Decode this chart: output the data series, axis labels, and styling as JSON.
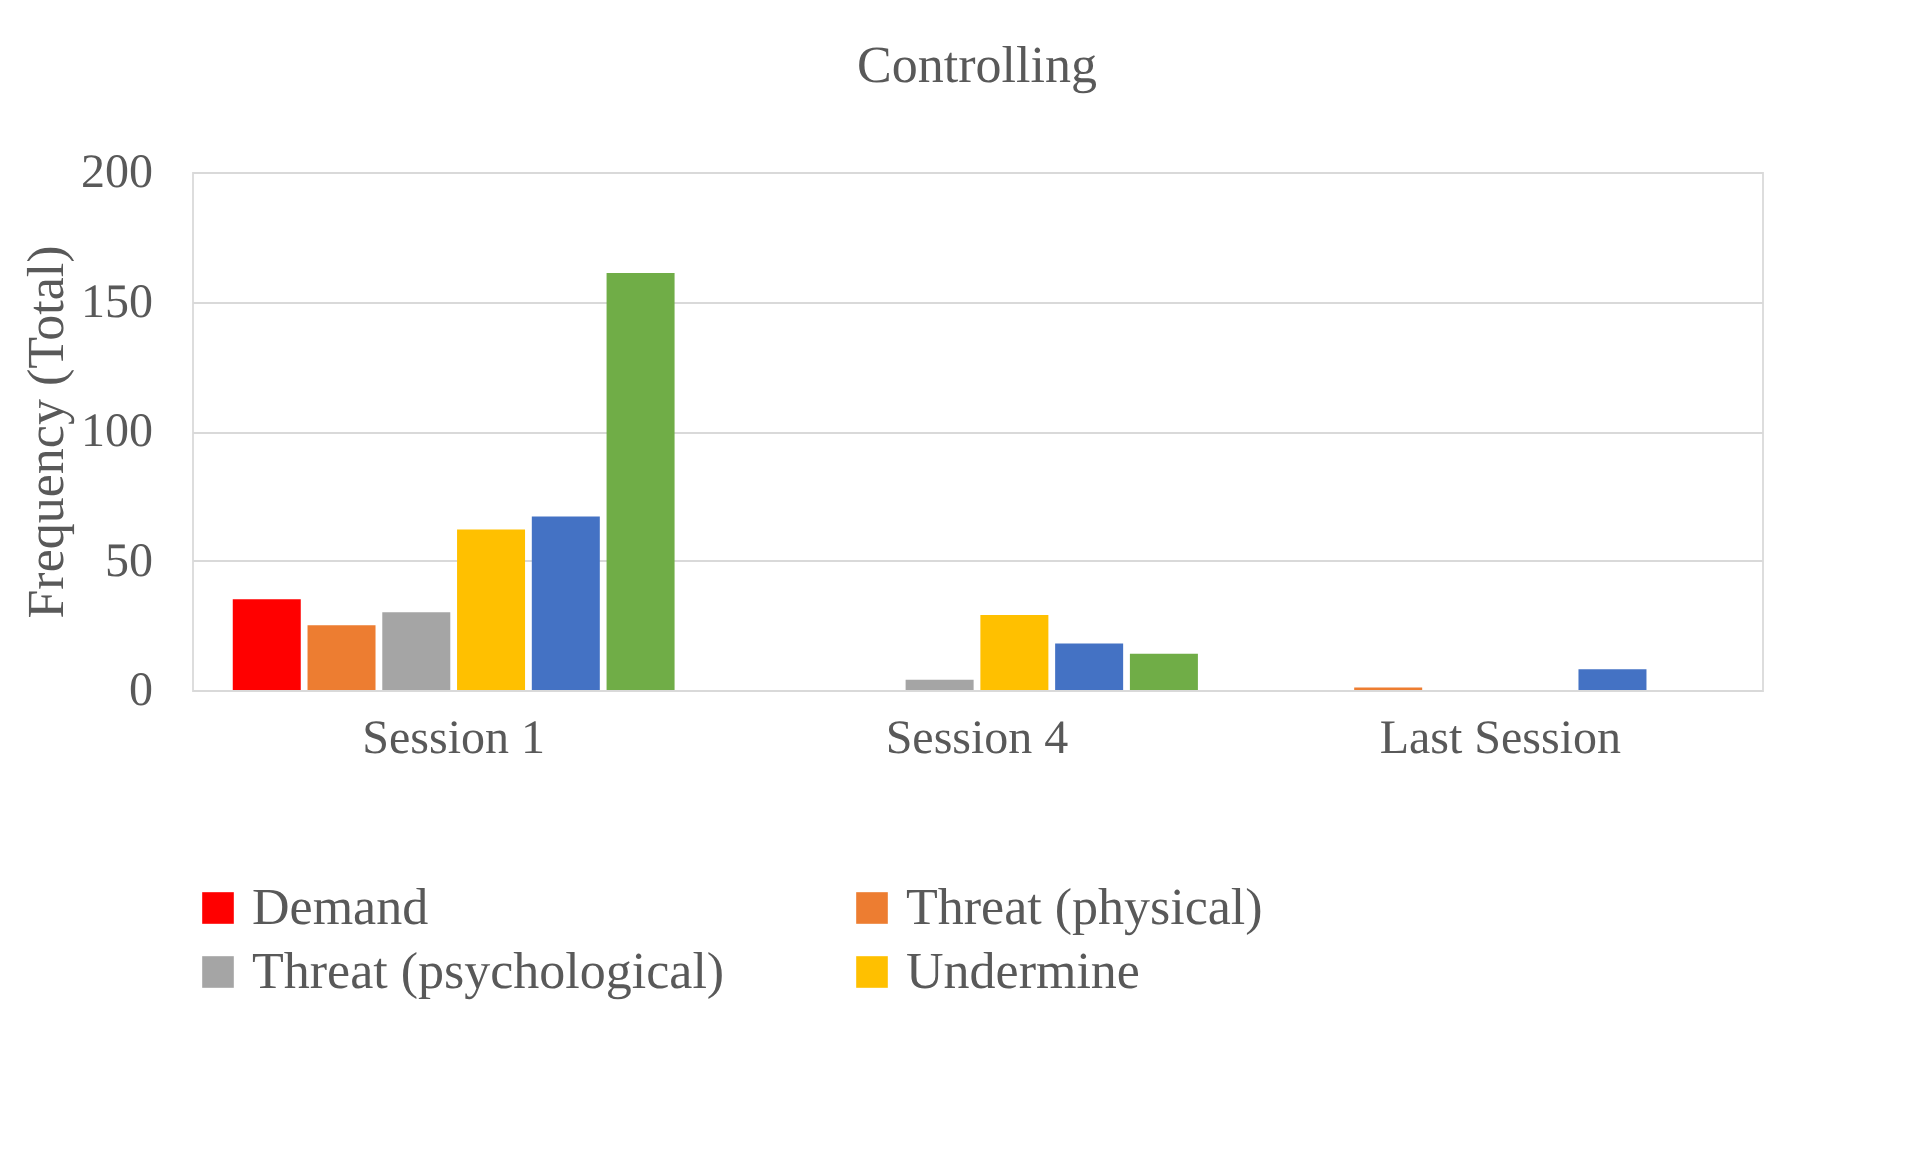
{
  "chart_data": {
    "type": "bar",
    "title": "Controlling",
    "ylabel": "Frequency (Total)",
    "categories": [
      "Session 1",
      "Session 4",
      "Last Session"
    ],
    "series": [
      {
        "name": "Demand",
        "color": "#ff0000",
        "values": [
          35,
          0,
          0
        ]
      },
      {
        "name": "Threat (physical)",
        "color": "#ed7d31",
        "values": [
          25,
          0,
          1
        ]
      },
      {
        "name": "Threat (psychological)",
        "color": "#a5a5a5",
        "values": [
          30,
          4,
          0
        ]
      },
      {
        "name": "Undermine",
        "color": "#ffc000",
        "values": [
          62,
          29,
          0
        ]
      },
      {
        "color": "#4472c4",
        "values": [
          67,
          18,
          8
        ]
      },
      {
        "color": "#70ad47",
        "values": [
          161,
          14,
          0
        ]
      }
    ],
    "ylim": [
      0,
      200
    ],
    "yticks": [
      0,
      50,
      100,
      150,
      200
    ],
    "grid": "y",
    "legend": "bottom"
  }
}
